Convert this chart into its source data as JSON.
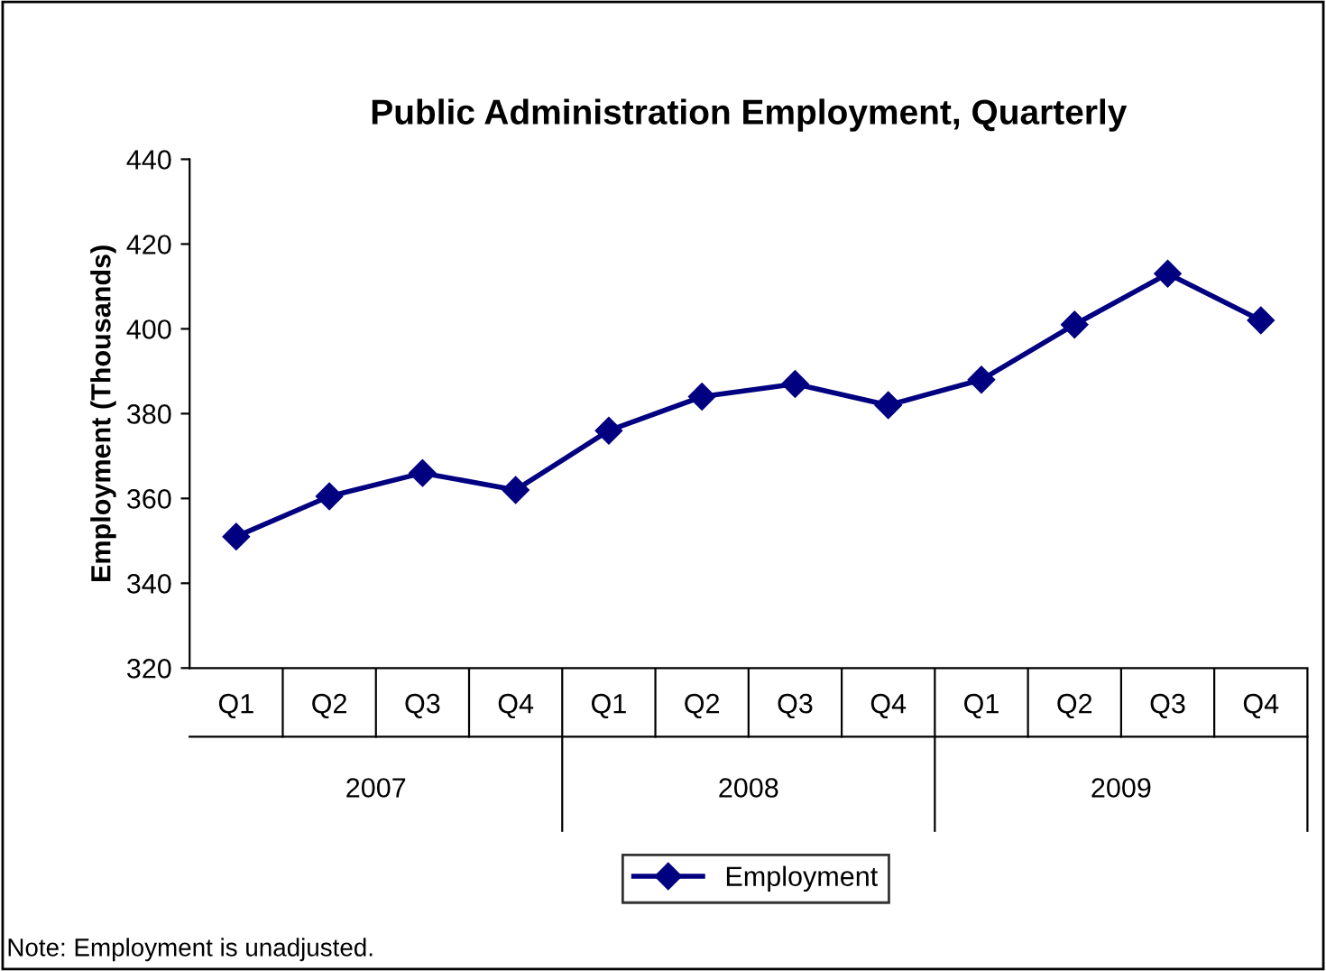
{
  "chart_data": {
    "type": "line",
    "title": "Public Administration Employment, Quarterly",
    "ylabel": "Employment (Thousands)",
    "categories": [
      "Q1",
      "Q2",
      "Q3",
      "Q4",
      "Q1",
      "Q2",
      "Q3",
      "Q4",
      "Q1",
      "Q2",
      "Q3",
      "Q4"
    ],
    "series": [
      {
        "name": "Employment",
        "color": "#000080",
        "values": [
          351,
          360.5,
          366,
          362,
          376,
          384,
          387,
          382,
          388,
          401,
          413,
          402
        ]
      }
    ],
    "ylim": [
      320,
      440
    ],
    "yticks": [
      320,
      340,
      360,
      380,
      400,
      420,
      440
    ],
    "grid": false,
    "legend": "bottom",
    "marker": "diamond",
    "line_style": "solid",
    "annotations": [
      "2007",
      "2008",
      "2009",
      "Note: Employment is unadjusted."
    ]
  }
}
